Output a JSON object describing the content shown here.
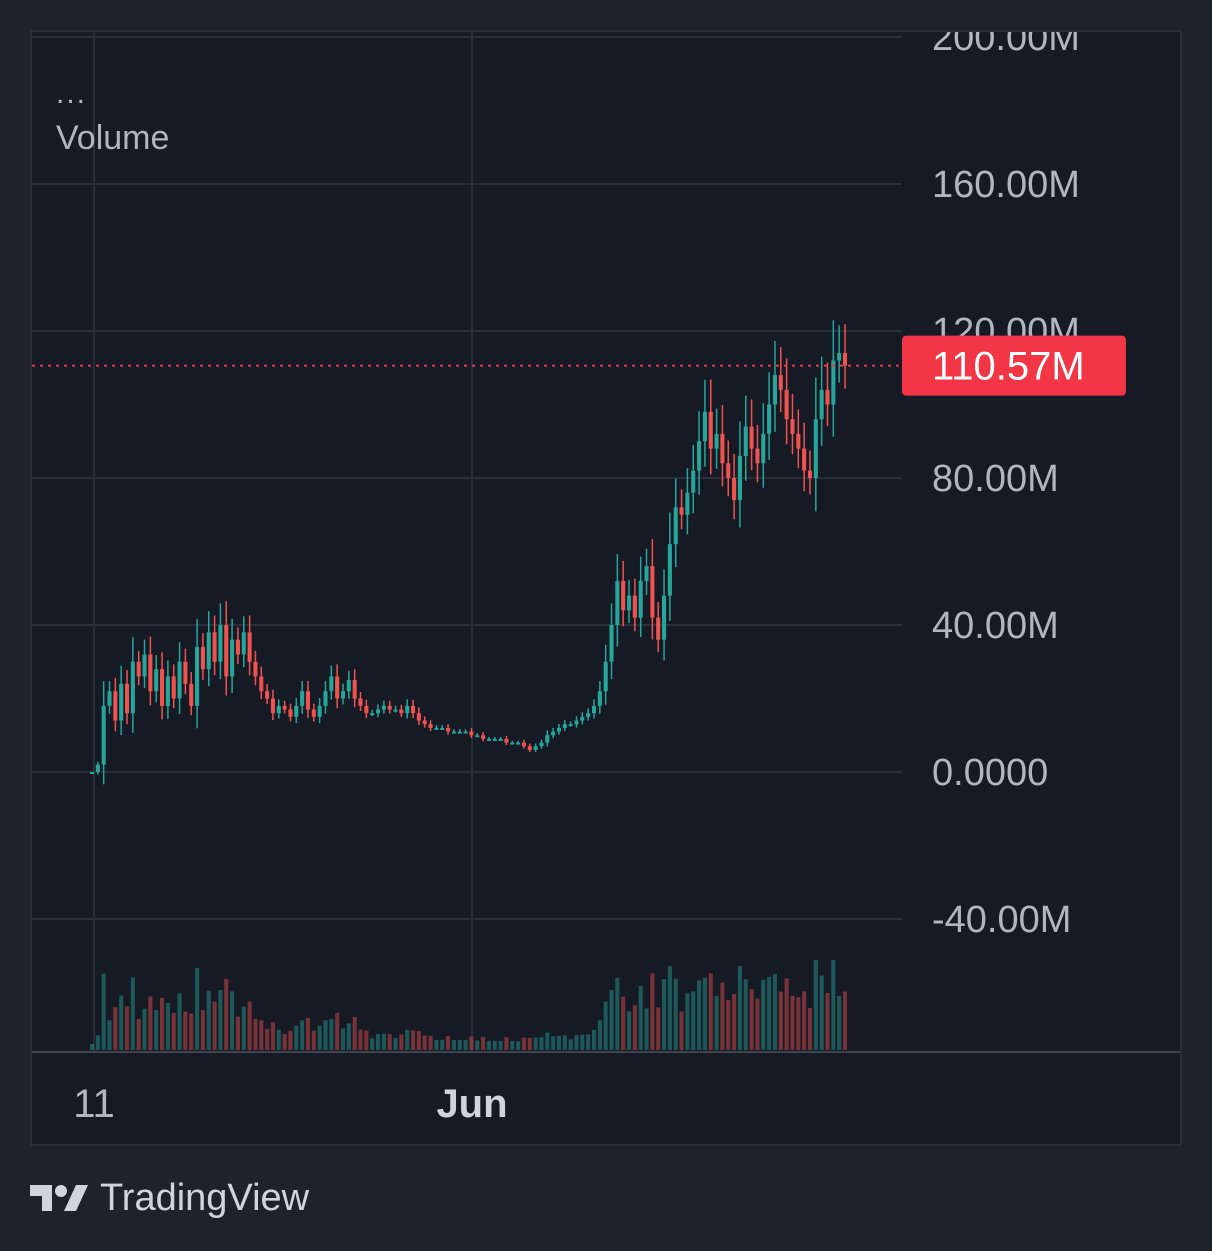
{
  "legend": {
    "dots": "...",
    "label": "Volume"
  },
  "brand": {
    "name": "TradingView"
  },
  "colors": {
    "up": "#26a69a",
    "down": "#ef5350",
    "badge": "#f23645",
    "grid": "#2a2e39",
    "bg": "#161a25"
  },
  "chart_data": {
    "type": "candlestick",
    "title": "",
    "ylabel": "",
    "xlabel": "",
    "ylim": [
      -40000000,
      200000000
    ],
    "y_ticks": [
      "200.00M",
      "160.00M",
      "120.00M",
      "80.00M",
      "40.00M",
      "0.0000",
      "-40.00M"
    ],
    "y_tick_values": [
      200000000,
      160000000,
      120000000,
      80000000,
      40000000,
      0,
      -40000000
    ],
    "x_ticks": [
      "11",
      "Jun"
    ],
    "last_value_label": "110.57M",
    "last_value": 110570000,
    "series": [
      {
        "name": "Volume",
        "values_m": [
          0,
          2,
          18,
          22,
          14,
          24,
          16,
          30,
          26,
          32,
          22,
          28,
          18,
          26,
          20,
          30,
          24,
          18,
          34,
          28,
          38,
          30,
          40,
          26,
          36,
          32,
          38,
          30,
          26,
          22,
          20,
          16,
          18,
          17,
          15,
          18,
          22,
          17,
          15,
          18,
          22,
          26,
          20,
          22,
          25,
          20,
          18,
          16,
          16,
          17,
          18,
          17,
          17,
          16,
          18,
          16,
          14,
          13,
          12,
          12,
          12,
          11,
          11,
          11,
          11,
          10,
          10,
          9,
          9,
          9,
          9,
          8,
          8,
          8,
          7,
          6,
          7,
          8,
          10,
          11,
          12,
          13,
          13,
          14,
          15,
          16,
          18,
          22,
          30,
          40,
          52,
          44,
          48,
          42,
          52,
          56,
          42,
          36,
          48,
          62,
          72,
          70,
          76,
          82,
          90,
          98,
          88,
          92,
          84,
          80,
          74,
          86,
          94,
          88,
          84,
          92,
          100,
          108,
          104,
          96,
          92,
          88,
          82,
          80,
          96,
          104,
          100,
          112,
          114,
          110.57
        ]
      }
    ]
  }
}
